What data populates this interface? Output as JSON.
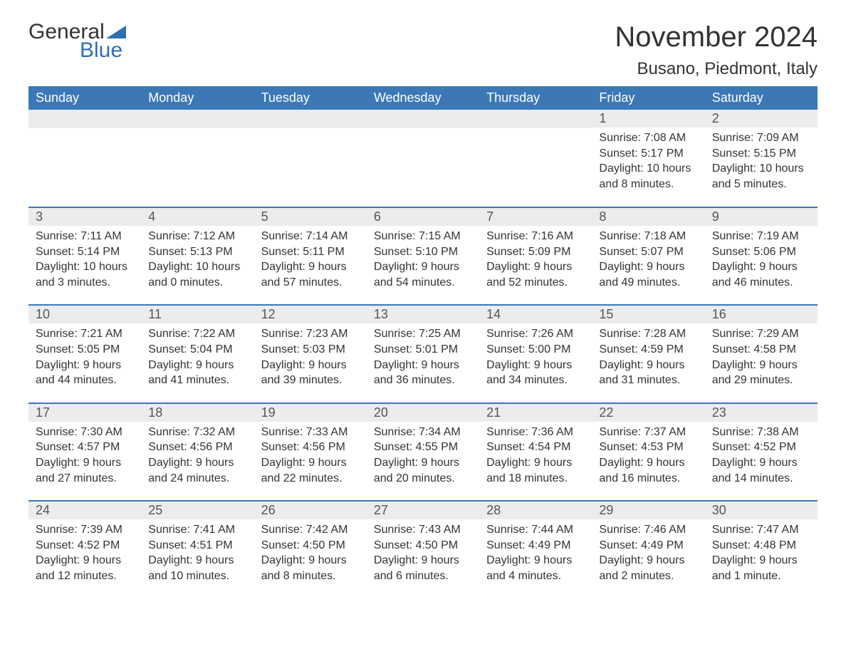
{
  "logo": {
    "word1": "General",
    "word2": "Blue",
    "accent_color": "#2f6fb0",
    "text_color": "#333333"
  },
  "title": "November 2024",
  "location": "Busano, Piedmont, Italy",
  "colors": {
    "header_bg": "#3b78b5",
    "header_text": "#ffffff",
    "row_divider": "#3b78b5",
    "daynum_bg": "#ececec",
    "daynum_text": "#555555",
    "body_text": "#333333",
    "page_bg": "#ffffff"
  },
  "typography": {
    "title_fontsize": 40,
    "location_fontsize": 24,
    "header_fontsize": 18,
    "daynum_fontsize": 18,
    "cell_fontsize": 16,
    "font_family": "Segoe UI"
  },
  "weekdays": [
    "Sunday",
    "Monday",
    "Tuesday",
    "Wednesday",
    "Thursday",
    "Friday",
    "Saturday"
  ],
  "weeks": [
    [
      null,
      null,
      null,
      null,
      null,
      {
        "day": "1",
        "sunrise": "Sunrise: 7:08 AM",
        "sunset": "Sunset: 5:17 PM",
        "daylight": "Daylight: 10 hours and 8 minutes."
      },
      {
        "day": "2",
        "sunrise": "Sunrise: 7:09 AM",
        "sunset": "Sunset: 5:15 PM",
        "daylight": "Daylight: 10 hours and 5 minutes."
      }
    ],
    [
      {
        "day": "3",
        "sunrise": "Sunrise: 7:11 AM",
        "sunset": "Sunset: 5:14 PM",
        "daylight": "Daylight: 10 hours and 3 minutes."
      },
      {
        "day": "4",
        "sunrise": "Sunrise: 7:12 AM",
        "sunset": "Sunset: 5:13 PM",
        "daylight": "Daylight: 10 hours and 0 minutes."
      },
      {
        "day": "5",
        "sunrise": "Sunrise: 7:14 AM",
        "sunset": "Sunset: 5:11 PM",
        "daylight": "Daylight: 9 hours and 57 minutes."
      },
      {
        "day": "6",
        "sunrise": "Sunrise: 7:15 AM",
        "sunset": "Sunset: 5:10 PM",
        "daylight": "Daylight: 9 hours and 54 minutes."
      },
      {
        "day": "7",
        "sunrise": "Sunrise: 7:16 AM",
        "sunset": "Sunset: 5:09 PM",
        "daylight": "Daylight: 9 hours and 52 minutes."
      },
      {
        "day": "8",
        "sunrise": "Sunrise: 7:18 AM",
        "sunset": "Sunset: 5:07 PM",
        "daylight": "Daylight: 9 hours and 49 minutes."
      },
      {
        "day": "9",
        "sunrise": "Sunrise: 7:19 AM",
        "sunset": "Sunset: 5:06 PM",
        "daylight": "Daylight: 9 hours and 46 minutes."
      }
    ],
    [
      {
        "day": "10",
        "sunrise": "Sunrise: 7:21 AM",
        "sunset": "Sunset: 5:05 PM",
        "daylight": "Daylight: 9 hours and 44 minutes."
      },
      {
        "day": "11",
        "sunrise": "Sunrise: 7:22 AM",
        "sunset": "Sunset: 5:04 PM",
        "daylight": "Daylight: 9 hours and 41 minutes."
      },
      {
        "day": "12",
        "sunrise": "Sunrise: 7:23 AM",
        "sunset": "Sunset: 5:03 PM",
        "daylight": "Daylight: 9 hours and 39 minutes."
      },
      {
        "day": "13",
        "sunrise": "Sunrise: 7:25 AM",
        "sunset": "Sunset: 5:01 PM",
        "daylight": "Daylight: 9 hours and 36 minutes."
      },
      {
        "day": "14",
        "sunrise": "Sunrise: 7:26 AM",
        "sunset": "Sunset: 5:00 PM",
        "daylight": "Daylight: 9 hours and 34 minutes."
      },
      {
        "day": "15",
        "sunrise": "Sunrise: 7:28 AM",
        "sunset": "Sunset: 4:59 PM",
        "daylight": "Daylight: 9 hours and 31 minutes."
      },
      {
        "day": "16",
        "sunrise": "Sunrise: 7:29 AM",
        "sunset": "Sunset: 4:58 PM",
        "daylight": "Daylight: 9 hours and 29 minutes."
      }
    ],
    [
      {
        "day": "17",
        "sunrise": "Sunrise: 7:30 AM",
        "sunset": "Sunset: 4:57 PM",
        "daylight": "Daylight: 9 hours and 27 minutes."
      },
      {
        "day": "18",
        "sunrise": "Sunrise: 7:32 AM",
        "sunset": "Sunset: 4:56 PM",
        "daylight": "Daylight: 9 hours and 24 minutes."
      },
      {
        "day": "19",
        "sunrise": "Sunrise: 7:33 AM",
        "sunset": "Sunset: 4:56 PM",
        "daylight": "Daylight: 9 hours and 22 minutes."
      },
      {
        "day": "20",
        "sunrise": "Sunrise: 7:34 AM",
        "sunset": "Sunset: 4:55 PM",
        "daylight": "Daylight: 9 hours and 20 minutes."
      },
      {
        "day": "21",
        "sunrise": "Sunrise: 7:36 AM",
        "sunset": "Sunset: 4:54 PM",
        "daylight": "Daylight: 9 hours and 18 minutes."
      },
      {
        "day": "22",
        "sunrise": "Sunrise: 7:37 AM",
        "sunset": "Sunset: 4:53 PM",
        "daylight": "Daylight: 9 hours and 16 minutes."
      },
      {
        "day": "23",
        "sunrise": "Sunrise: 7:38 AM",
        "sunset": "Sunset: 4:52 PM",
        "daylight": "Daylight: 9 hours and 14 minutes."
      }
    ],
    [
      {
        "day": "24",
        "sunrise": "Sunrise: 7:39 AM",
        "sunset": "Sunset: 4:52 PM",
        "daylight": "Daylight: 9 hours and 12 minutes."
      },
      {
        "day": "25",
        "sunrise": "Sunrise: 7:41 AM",
        "sunset": "Sunset: 4:51 PM",
        "daylight": "Daylight: 9 hours and 10 minutes."
      },
      {
        "day": "26",
        "sunrise": "Sunrise: 7:42 AM",
        "sunset": "Sunset: 4:50 PM",
        "daylight": "Daylight: 9 hours and 8 minutes."
      },
      {
        "day": "27",
        "sunrise": "Sunrise: 7:43 AM",
        "sunset": "Sunset: 4:50 PM",
        "daylight": "Daylight: 9 hours and 6 minutes."
      },
      {
        "day": "28",
        "sunrise": "Sunrise: 7:44 AM",
        "sunset": "Sunset: 4:49 PM",
        "daylight": "Daylight: 9 hours and 4 minutes."
      },
      {
        "day": "29",
        "sunrise": "Sunrise: 7:46 AM",
        "sunset": "Sunset: 4:49 PM",
        "daylight": "Daylight: 9 hours and 2 minutes."
      },
      {
        "day": "30",
        "sunrise": "Sunrise: 7:47 AM",
        "sunset": "Sunset: 4:48 PM",
        "daylight": "Daylight: 9 hours and 1 minute."
      }
    ]
  ]
}
